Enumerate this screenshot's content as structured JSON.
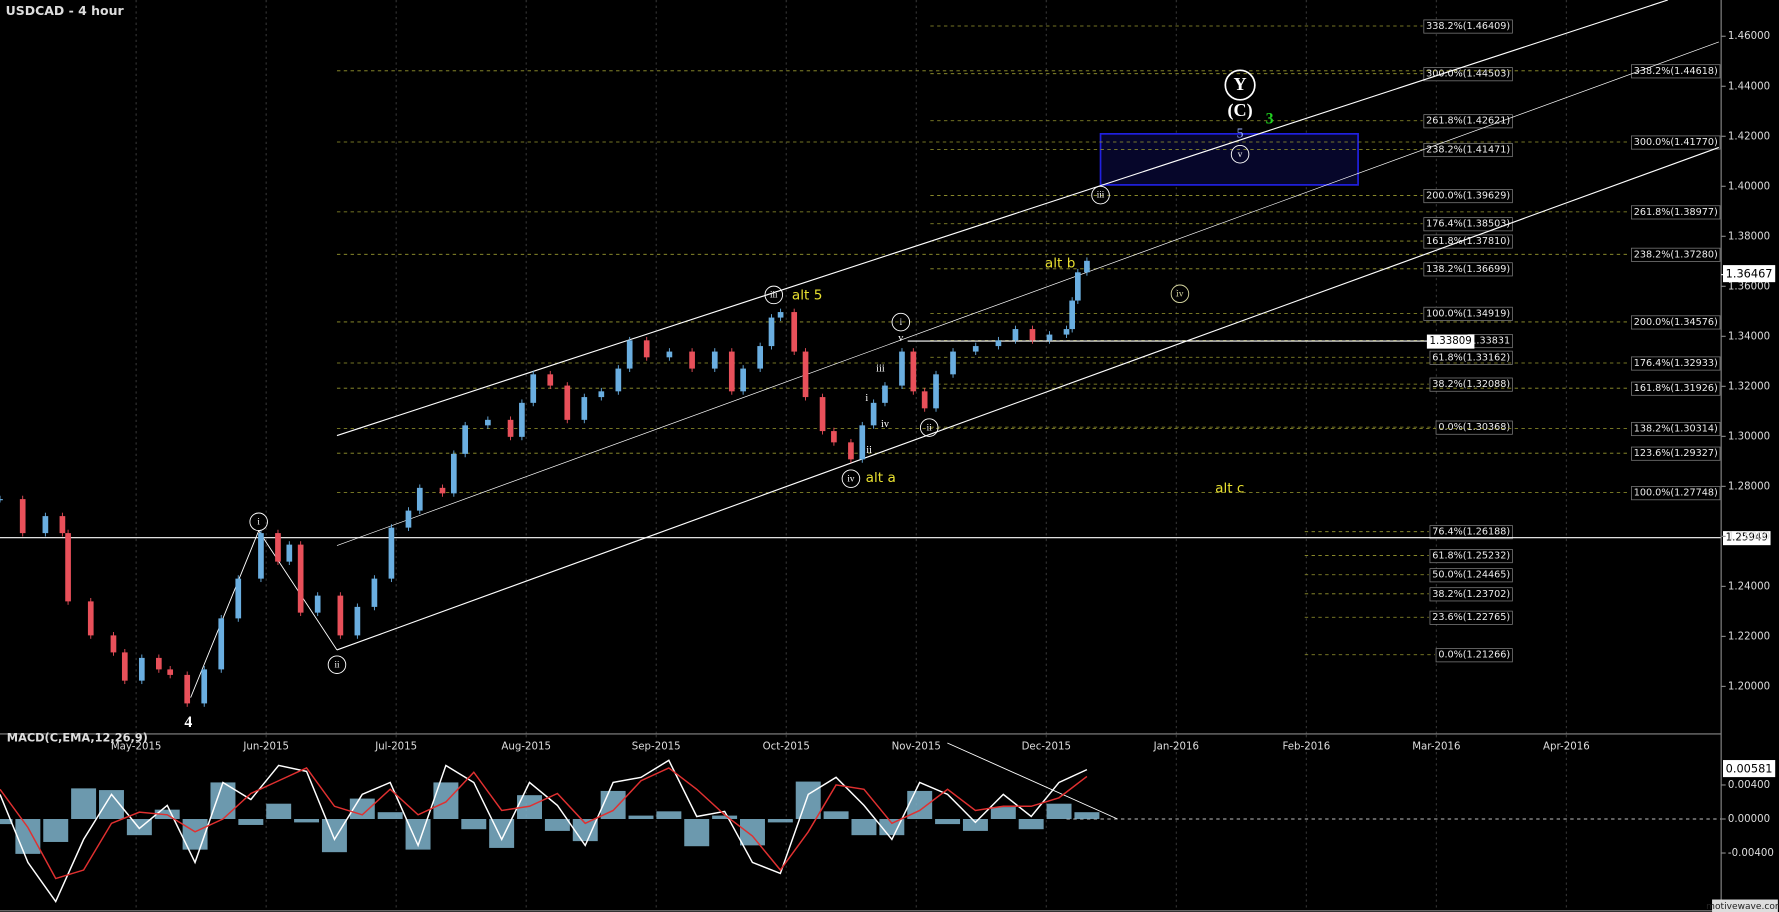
{
  "chart_data": {
    "type": "candlestick",
    "title": "USDCAD - 4 hour",
    "x_labels": [
      "May-2015",
      "Jun-2015",
      "Jul-2015",
      "Aug-2015",
      "Sep-2015",
      "Oct-2015",
      "Nov-2015",
      "Dec-2015",
      "Jan-2016",
      "Feb-2016",
      "Mar-2016",
      "Apr-2016"
    ],
    "ylim": [
      1.181,
      1.4745
    ],
    "yticks": [
      {
        "value": 1.46,
        "label": "1.46000"
      },
      {
        "value": 1.44,
        "label": "1.44000"
      },
      {
        "value": 1.42,
        "label": "1.42000"
      },
      {
        "value": 1.4,
        "label": "1.40000"
      },
      {
        "value": 1.38,
        "label": "1.38000"
      },
      {
        "value": 1.36,
        "label": "1.36000"
      },
      {
        "value": 1.34,
        "label": "1.34000"
      },
      {
        "value": 1.32,
        "label": "1.32000"
      },
      {
        "value": 1.3,
        "label": "1.30000"
      },
      {
        "value": 1.28,
        "label": "1.28000"
      },
      {
        "value": 1.26,
        "label": "1.26000"
      },
      {
        "value": 1.24,
        "label": "1.24000"
      },
      {
        "value": 1.22,
        "label": "1.22000"
      },
      {
        "value": 1.2,
        "label": "1.20000"
      }
    ],
    "colors": {
      "up": "#6aaee0",
      "down": "#e8505a"
    },
    "price": {
      "values": [
        1.2749,
        1.2613,
        1.2681,
        1.2613,
        1.234,
        1.2204,
        1.2136,
        1.2023,
        1.2114,
        1.2068,
        1.2046,
        1.1932,
        1.2068,
        1.2272,
        1.2431,
        1.2613,
        1.2499,
        1.2567,
        1.2295,
        1.2363,
        1.2204,
        1.2318,
        1.2431,
        1.2635,
        1.2703,
        1.2794,
        1.2772,
        1.293,
        1.3044,
        1.3066,
        1.2998,
        1.3134,
        1.3248,
        1.3203,
        1.3066,
        1.3157,
        1.318,
        1.3271,
        1.3384,
        1.3316,
        1.3339,
        1.3271,
        1.3339,
        1.318,
        1.3271,
        1.3361,
        1.3475,
        1.3497,
        1.3339,
        1.3157,
        1.3021,
        1.2976,
        1.2908,
        1.3044,
        1.3134,
        1.3203,
        1.3339,
        1.318,
        1.3112,
        1.3248,
        1.3339,
        1.3361,
        1.3384,
        1.3429,
        1.3384,
        1.3407,
        1.3429,
        1.3543,
        1.3656,
        1.3702
      ]
    },
    "last_price": {
      "value": 1.36467,
      "label": "1.36467"
    },
    "levels": [
      {
        "value": 1.25949,
        "label": "1.25949"
      },
      {
        "value": 1.33809,
        "label": "1.33809"
      }
    ],
    "fib_sets": [
      {
        "levels": [
          {
            "value": 1.46409,
            "label": "338.2%(1.46409)"
          },
          {
            "value": 1.44503,
            "label": "300.0%(1.44503)"
          },
          {
            "value": 1.42621,
            "label": "261.8%(1.42621)"
          },
          {
            "value": 1.41471,
            "label": "238.2%(1.41471)"
          },
          {
            "value": 1.39629,
            "label": "200.0%(1.39629)"
          },
          {
            "value": 1.38503,
            "label": "176.4%(1.38503)"
          },
          {
            "value": 1.3781,
            "label": "161.8%(1.37810)"
          },
          {
            "value": 1.36699,
            "label": "138.2%(1.36699)"
          },
          {
            "value": 1.34919,
            "label": "100.0%(1.34919)"
          },
          {
            "value": 1.33831,
            "label": "1.33831"
          },
          {
            "value": 1.33162,
            "label": "61.8%(1.33162)"
          },
          {
            "value": 1.32088,
            "label": "38.2%(1.32088)"
          },
          {
            "value": 1.30368,
            "label": "0.0%(1.30368)"
          }
        ]
      },
      {
        "levels": [
          {
            "value": 1.26188,
            "label": "76.4%(1.26188)"
          },
          {
            "value": 1.25232,
            "label": "61.8%(1.25232)"
          },
          {
            "value": 1.24465,
            "label": "50.0%(1.24465)"
          },
          {
            "value": 1.23702,
            "label": "38.2%(1.23702)"
          },
          {
            "value": 1.22765,
            "label": "23.6%(1.22765)"
          },
          {
            "value": 1.21266,
            "label": "0.0%(1.21266)"
          }
        ]
      },
      {
        "levels": [
          {
            "value": 1.44618,
            "label": "338.2%(1.44618)"
          },
          {
            "value": 1.4177,
            "label": "300.0%(1.41770)"
          },
          {
            "value": 1.38977,
            "label": "261.8%(1.38977)"
          },
          {
            "value": 1.3728,
            "label": "238.2%(1.37280)"
          },
          {
            "value": 1.34576,
            "label": "200.0%(1.34576)"
          },
          {
            "value": 1.32933,
            "label": "176.4%(1.32933)"
          },
          {
            "value": 1.31926,
            "label": "161.8%(1.31926)"
          },
          {
            "value": 1.30314,
            "label": "138.2%(1.30314)"
          },
          {
            "value": 1.29327,
            "label": "123.6%(1.29327)"
          },
          {
            "value": 1.27748,
            "label": "100.0%(1.27748)"
          }
        ]
      }
    ],
    "annotations": [
      {
        "text": "4",
        "color": "#ffffff"
      },
      {
        "text": "i",
        "color": "#ffffff",
        "circled": true
      },
      {
        "text": "ii",
        "color": "#ffffff",
        "circled": true
      },
      {
        "text": "iii",
        "color": "#ffffff",
        "circled": true
      },
      {
        "text": "alt 5",
        "color": "#e8e030"
      },
      {
        "text": "iv",
        "color": "#ffffff",
        "circled": true
      },
      {
        "text": "alt a",
        "color": "#e8e030"
      },
      {
        "text": "i",
        "color": "#ffffff",
        "circled": true
      },
      {
        "text": "v",
        "color": "#ffffff"
      },
      {
        "text": "iii",
        "color": "#ffffff"
      },
      {
        "text": "i",
        "color": "#ffffff"
      },
      {
        "text": "iv",
        "color": "#ffffff"
      },
      {
        "text": "ii",
        "color": "#ffffff"
      },
      {
        "text": "ii",
        "color": "#ffffff",
        "circled": true
      },
      {
        "text": "alt b",
        "color": "#e8e030"
      },
      {
        "text": "iv",
        "color": "#d8d8a0",
        "circled": true
      },
      {
        "text": "iii",
        "color": "#ffffff",
        "circled": true
      },
      {
        "text": "v",
        "color": "#ffffff",
        "circled": true
      },
      {
        "text": "5",
        "color": "#9ab0ff"
      },
      {
        "text": "Y",
        "color": "#ffffff",
        "circled": true
      },
      {
        "text": "(C)",
        "color": "#ffffff"
      },
      {
        "text": "3",
        "color": "#20d020"
      },
      {
        "text": "alt c",
        "color": "#e8e030"
      }
    ],
    "macd": {
      "title": "MACD(C,EMA,12,26,9)",
      "ylim": [
        -0.0104,
        0.00987
      ],
      "yticks": [
        {
          "value": 0.004,
          "label": "0.00400"
        },
        {
          "value": 0,
          "label": "0.00000"
        },
        {
          "value": -0.004,
          "label": "-0.00400"
        }
      ],
      "current": {
        "value": 0.00581,
        "label": "0.00581"
      },
      "histogram": {
        "color": "#7fb4cc",
        "values": [
          -0.0006,
          -0.0041,
          -0.0027,
          0.0036,
          0.0034,
          -0.0019,
          0.0011,
          -0.0036,
          0.0043,
          -0.0007,
          0.0018,
          -0.0004,
          -0.0039,
          0.0024,
          0.0008,
          -0.0036,
          0.0043,
          -0.0012,
          -0.0034,
          0.0028,
          -0.0014,
          -0.0026,
          0.0033,
          0.0004,
          0.0009,
          -0.0032,
          0.0004,
          -0.0031,
          -0.0004,
          0.0044,
          0.0009,
          -0.0019,
          -0.0019,
          0.0033,
          -0.0006,
          -0.0014,
          0.0014,
          -0.0012,
          0.0018,
          0.0008
        ]
      },
      "series": [
        {
          "color": "#ffffff",
          "values": [
            0.0029,
            -0.0051,
            -0.0097,
            -0.0024,
            0.0029,
            -0.0011,
            0.0016,
            -0.0051,
            0.0043,
            0.0023,
            0.0063,
            0.0056,
            -0.0024,
            0.0029,
            0.0043,
            -0.0031,
            0.0063,
            0.0043,
            -0.0024,
            0.0043,
            0.0016,
            -0.0031,
            0.0043,
            0.0049,
            0.0069,
            0.0003,
            0.0009,
            -0.0051,
            -0.0064,
            0.0029,
            0.0049,
            0.0016,
            -0.0024,
            0.0043,
            0.0029,
            -0.0004,
            0.0029,
            0.0003,
            0.0043,
            0.0058
          ]
        },
        {
          "color": "#e03030",
          "values": [
            0.0035,
            -0.001,
            -0.007,
            -0.006,
            -0.0005,
            0.0008,
            0.0005,
            -0.0015,
            0.0,
            0.003,
            0.0045,
            0.006,
            0.0015,
            0.0005,
            0.0035,
            0.0005,
            0.002,
            0.0055,
            0.001,
            0.0015,
            0.003,
            -0.0005,
            0.001,
            0.0045,
            0.006,
            0.0035,
            0.0005,
            -0.002,
            -0.006,
            -0.0015,
            0.004,
            0.0035,
            -0.0005,
            0.001,
            0.0035,
            0.001,
            0.0015,
            0.0015,
            0.0025,
            0.005
          ]
        }
      ]
    },
    "watermark": "motivewave.com"
  }
}
